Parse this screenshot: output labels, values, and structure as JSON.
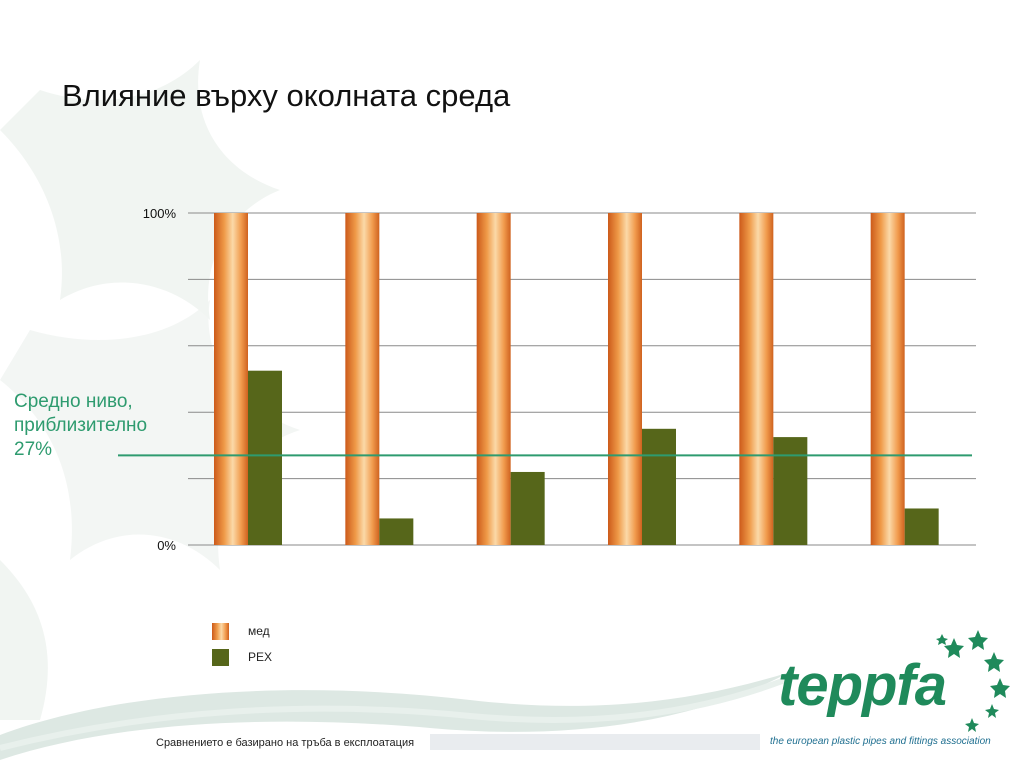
{
  "slide": {
    "title": "Влияние върху околната среда",
    "footnote": "Сравнението е базирано на тръба в експлоатация"
  },
  "average_label": {
    "line1": "Средно ниво,",
    "line2": "приблизително",
    "line3": "27%"
  },
  "legend": {
    "copper": "мед",
    "pex": "PEX"
  },
  "logo": {
    "word": "teppfa",
    "tagline": "the european plastic pipes and fittings association",
    "icon": "star-swirl-icon"
  },
  "colors": {
    "copper": "#e37f2f",
    "pex": "#56661a",
    "average_line": "#2e9b6f",
    "gridline": "#8a8a8a",
    "logo": "#1f8a5b"
  },
  "chart_data": {
    "type": "bar",
    "title": "Влияние върху околната среда",
    "xlabel": "",
    "ylabel": "",
    "ylim": [
      0,
      100
    ],
    "ytick_labels": [
      "0%",
      "100%"
    ],
    "yticks": [
      0,
      100
    ],
    "grid": true,
    "categories": [
      "",
      "",
      "",
      "",
      "",
      ""
    ],
    "series": [
      {
        "name": "мед",
        "values": [
          100,
          100,
          100,
          100,
          100,
          100
        ]
      },
      {
        "name": "PEX",
        "values": [
          52.5,
          8,
          22,
          35,
          32.5,
          11
        ]
      }
    ],
    "reference_line": {
      "value": 27
    },
    "legend_position": "bottom-left"
  }
}
